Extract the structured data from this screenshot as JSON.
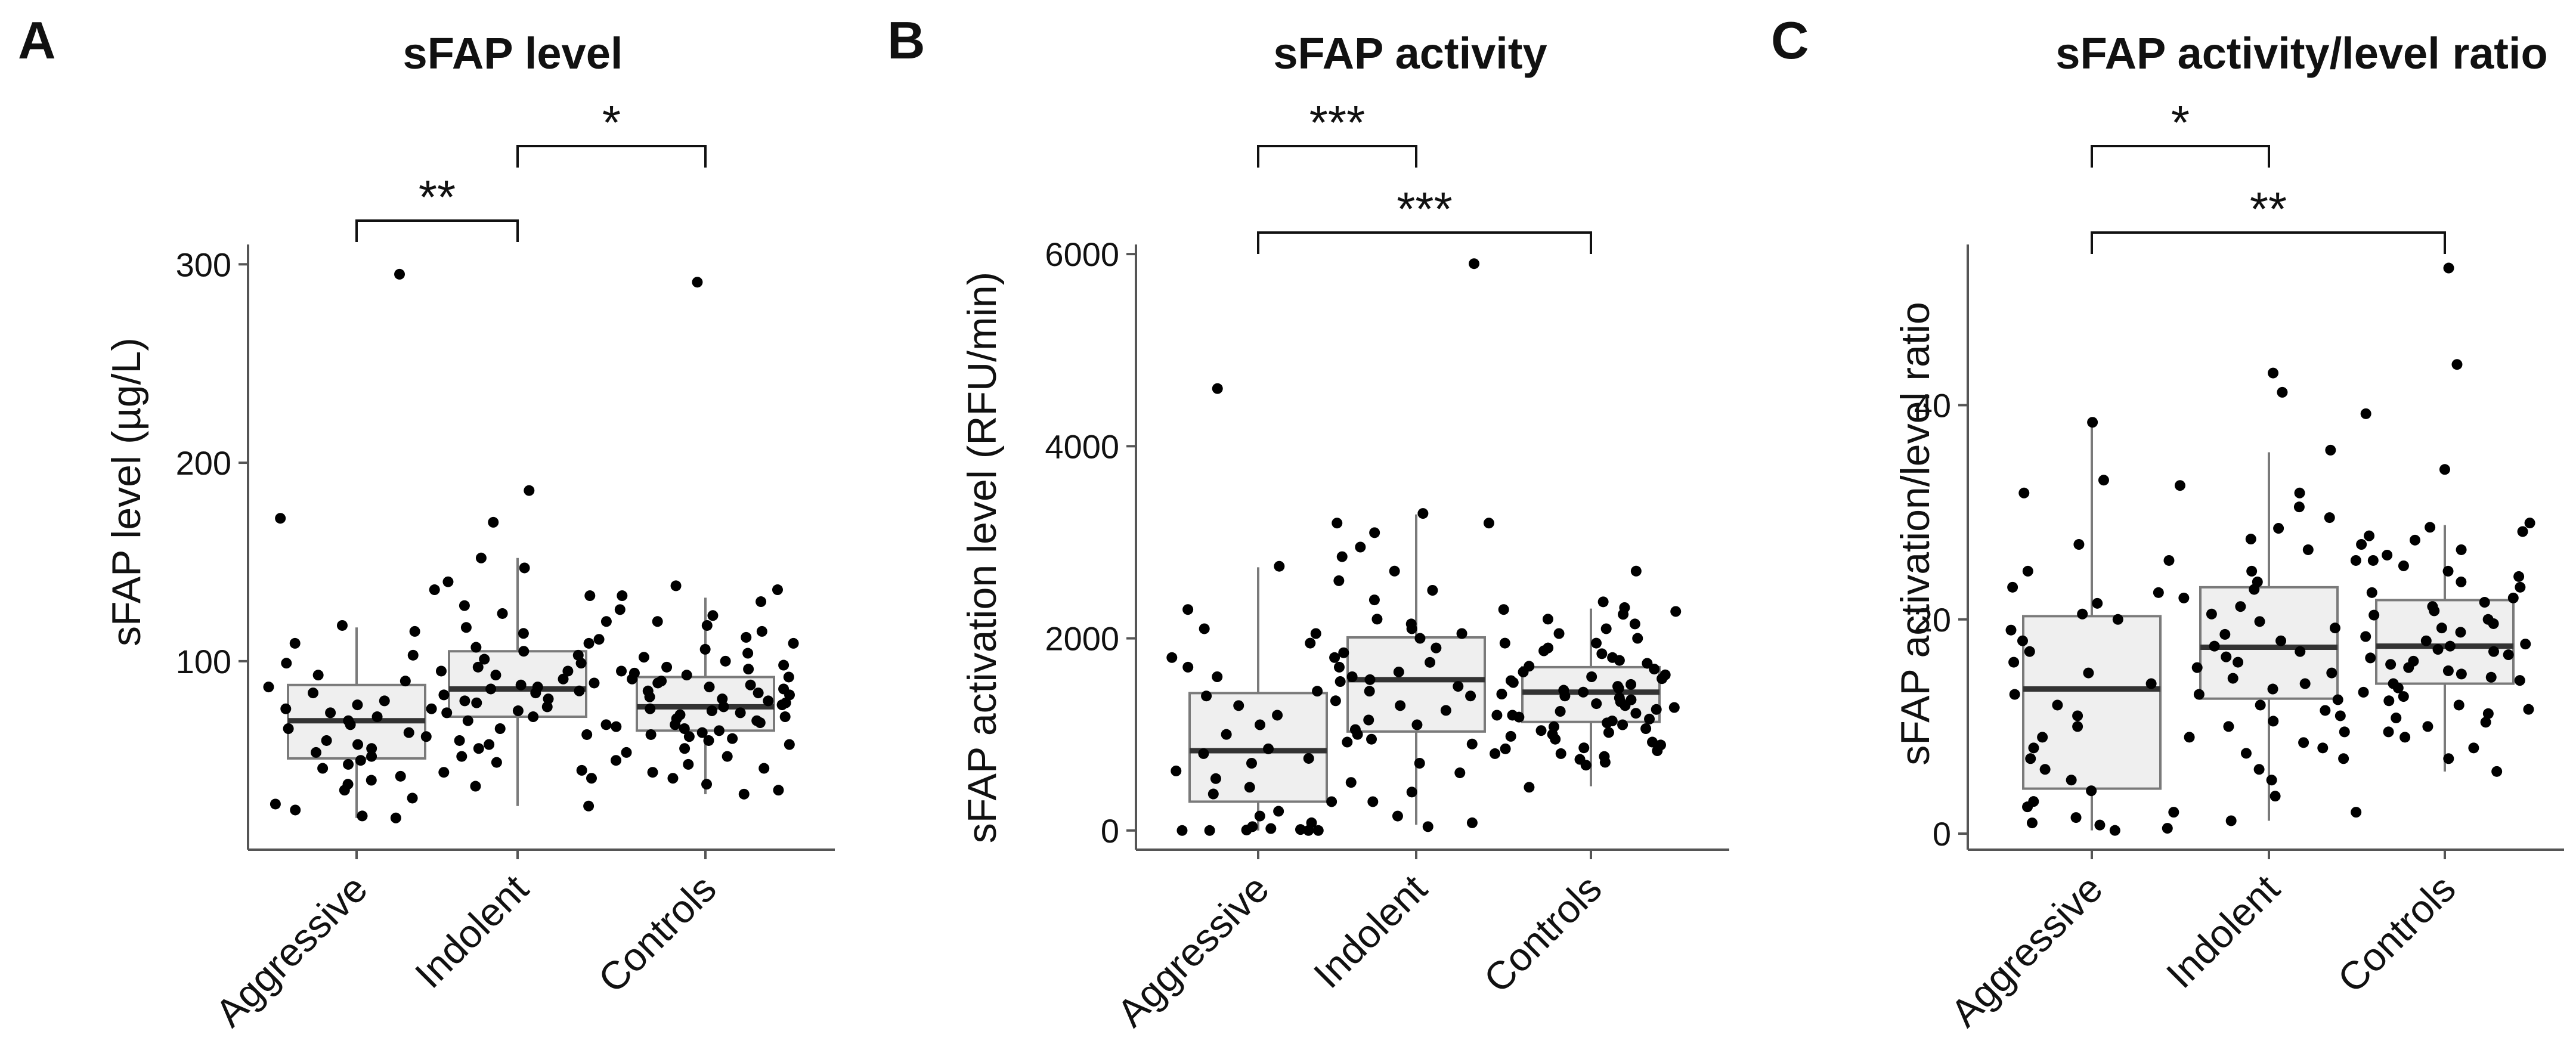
{
  "colors": {
    "box_fill": "#efefef",
    "box_stroke": "#7a7a7a",
    "median": "#333333",
    "point": "#000000",
    "axis": "#555555"
  },
  "chart_data": [
    {
      "type": "boxplot",
      "panel_letter": "A",
      "title": "sFAP level",
      "xlabel": "",
      "ylabel": "sFAP level (µg/L)",
      "ylim": [
        5,
        310
      ],
      "yticks": [
        100,
        200,
        300
      ],
      "categories": [
        "Aggressive",
        "Indolent",
        "Controls"
      ],
      "boxes": [
        {
          "q1": 51,
          "median": 70,
          "q3": 88,
          "whisker_low": 21,
          "whisker_high": 117
        },
        {
          "q1": 72,
          "median": 86,
          "q3": 105,
          "whisker_low": 27,
          "whisker_high": 152
        },
        {
          "q1": 65,
          "median": 77,
          "q3": 92,
          "whisker_low": 33,
          "whisker_high": 132
        }
      ],
      "points": [
        [
          295,
          172,
          118,
          115,
          109,
          103,
          99,
          95,
          93,
          90,
          87,
          84,
          80,
          78,
          76,
          74,
          72,
          70,
          68,
          66,
          64,
          62,
          60,
          58,
          56,
          54,
          52,
          50,
          48,
          46,
          44,
          42,
          40,
          38,
          35,
          31,
          28,
          25,
          22,
          21
        ],
        [
          186,
          170,
          152,
          147,
          140,
          136,
          133,
          128,
          124,
          120,
          117,
          114,
          111,
          109,
          107,
          105,
          103,
          101,
          99,
          97,
          95,
          93,
          91,
          89,
          88,
          87,
          86,
          85,
          84,
          83,
          81,
          80,
          79,
          77,
          76,
          75,
          74,
          72,
          70,
          68,
          66,
          63,
          60,
          58,
          56,
          52,
          49,
          45,
          41,
          37,
          27
        ],
        [
          291,
          138,
          136,
          133,
          130,
          126,
          123,
          120,
          118,
          115,
          112,
          109,
          106,
          104,
          102,
          100,
          98,
          97,
          96,
          95,
          94,
          93,
          92,
          91,
          90,
          89,
          88,
          87,
          86,
          85,
          84,
          83,
          82,
          81,
          80,
          79,
          78,
          77,
          76,
          75,
          74,
          73,
          72,
          71,
          70,
          69,
          68,
          67,
          66,
          65,
          64,
          63,
          62,
          61,
          60,
          58,
          56,
          54,
          52,
          50,
          48,
          46,
          44,
          41,
          38,
          35,
          33
        ]
      ],
      "significance": [
        {
          "from": 0,
          "to": 1,
          "label": "**",
          "level": 0
        },
        {
          "from": 1,
          "to": 2,
          "label": "*",
          "level": 1
        }
      ]
    },
    {
      "type": "boxplot",
      "panel_letter": "B",
      "title": "sFAP activity",
      "xlabel": "",
      "ylabel": "sFAP activation level (RFU/min)",
      "ylim": [
        -200,
        6100
      ],
      "yticks": [
        0,
        2000,
        4000,
        6000
      ],
      "categories": [
        "Aggressive",
        "Indolent",
        "Controls"
      ],
      "boxes": [
        {
          "q1": 300,
          "median": 830,
          "q3": 1430,
          "whisker_low": 0,
          "whisker_high": 2740
        },
        {
          "q1": 1030,
          "median": 1570,
          "q3": 2010,
          "whisker_low": 60,
          "whisker_high": 3290
        },
        {
          "q1": 1130,
          "median": 1440,
          "q3": 1700,
          "whisker_low": 460,
          "whisker_high": 2310
        }
      ],
      "points": [
        [
          4600,
          3200,
          2750,
          2300,
          2100,
          2050,
          1950,
          1800,
          1700,
          1600,
          1450,
          1400,
          1300,
          1200,
          1100,
          1000,
          920,
          850,
          800,
          750,
          700,
          620,
          540,
          450,
          380,
          300,
          200,
          150,
          80,
          40,
          20,
          10,
          5,
          0,
          0,
          0,
          0
        ],
        [
          5900,
          3300,
          3200,
          3100,
          2950,
          2850,
          2700,
          2600,
          2500,
          2400,
          2300,
          2200,
          2150,
          2100,
          2050,
          2000,
          1950,
          1900,
          1850,
          1800,
          1750,
          1700,
          1650,
          1600,
          1570,
          1550,
          1500,
          1450,
          1400,
          1350,
          1300,
          1250,
          1200,
          1150,
          1100,
          1050,
          1000,
          950,
          900,
          850,
          800,
          700,
          600,
          500,
          400,
          300,
          150,
          80,
          40
        ],
        [
          2700,
          2380,
          2320,
          2280,
          2250,
          2200,
          2150,
          2100,
          2050,
          2000,
          1950,
          1900,
          1870,
          1840,
          1800,
          1770,
          1740,
          1710,
          1680,
          1650,
          1620,
          1600,
          1580,
          1560,
          1540,
          1520,
          1500,
          1480,
          1460,
          1440,
          1420,
          1400,
          1380,
          1360,
          1340,
          1320,
          1300,
          1280,
          1260,
          1240,
          1220,
          1200,
          1180,
          1160,
          1140,
          1120,
          1100,
          1080,
          1060,
          1040,
          1020,
          1000,
          980,
          950,
          920,
          890,
          860,
          830,
          800,
          770,
          740,
          710,
          680,
          450
        ]
      ],
      "significance": [
        {
          "from": 0,
          "to": 1,
          "label": "***",
          "level": 1
        },
        {
          "from": 0,
          "to": 2,
          "label": "***",
          "level": 0
        }
      ]
    },
    {
      "type": "boxplot",
      "panel_letter": "C",
      "title": "sFAP activity/level ratio",
      "xlabel": "",
      "ylabel": "sFAP activation/level ratio",
      "ylim": [
        -1.5,
        55
      ],
      "yticks": [
        0,
        20,
        40
      ],
      "categories": [
        "Aggressive",
        "Indolent",
        "Controls"
      ],
      "boxes": [
        {
          "q1": 4.2,
          "median": 13.5,
          "q3": 20.3,
          "whisker_low": 0.3,
          "whisker_high": 38.2
        },
        {
          "q1": 12.6,
          "median": 17.4,
          "q3": 23.0,
          "whisker_low": 1.2,
          "whisker_high": 35.6
        },
        {
          "q1": 14.0,
          "median": 17.5,
          "q3": 21.8,
          "whisker_low": 5.8,
          "whisker_high": 28.8
        }
      ],
      "points": [
        [
          38.4,
          33.0,
          31.8,
          27.0,
          25.5,
          24.5,
          23.0,
          22.5,
          21.5,
          20.5,
          20.0,
          19.0,
          18.0,
          17.0,
          16.0,
          15.0,
          14.0,
          13.0,
          12.0,
          11.0,
          10.0,
          9.0,
          8.0,
          7.0,
          6.0,
          5.0,
          4.0,
          3.0,
          2.5,
          2.0,
          1.5,
          1.0,
          0.8,
          0.5,
          0.3
        ],
        [
          43.0,
          41.2,
          35.8,
          32.5,
          31.8,
          30.5,
          29.5,
          28.5,
          27.5,
          26.5,
          25.5,
          24.5,
          23.5,
          22.8,
          22.0,
          21.2,
          20.5,
          19.8,
          19.2,
          18.6,
          18.0,
          17.5,
          17.0,
          16.5,
          16.0,
          15.5,
          15.0,
          14.5,
          14.0,
          13.5,
          13.0,
          12.5,
          12.0,
          11.5,
          11.0,
          10.5,
          10.0,
          9.5,
          9.0,
          8.5,
          8.0,
          7.5,
          7.0,
          6.0,
          5.0,
          3.5,
          2.0,
          1.2
        ],
        [
          52.8,
          43.8,
          39.2,
          34.0,
          29.0,
          28.6,
          28.2,
          27.8,
          27.4,
          27.0,
          26.5,
          26.0,
          25.5,
          25.0,
          24.5,
          24.0,
          23.5,
          23.0,
          22.5,
          22.0,
          21.6,
          21.2,
          20.8,
          20.4,
          20.0,
          19.6,
          19.2,
          18.8,
          18.4,
          18.0,
          17.7,
          17.5,
          17.2,
          17.0,
          16.7,
          16.4,
          16.1,
          15.8,
          15.5,
          15.2,
          14.9,
          14.6,
          14.3,
          14.0,
          13.6,
          13.2,
          12.8,
          12.4,
          12.0,
          11.6,
          11.2,
          10.8,
          10.4,
          10.0,
          9.5,
          9.0,
          8.0,
          7.0,
          5.8
        ]
      ],
      "significance": [
        {
          "from": 0,
          "to": 1,
          "label": "*",
          "level": 1
        },
        {
          "from": 0,
          "to": 2,
          "label": "**",
          "level": 0
        }
      ]
    }
  ]
}
